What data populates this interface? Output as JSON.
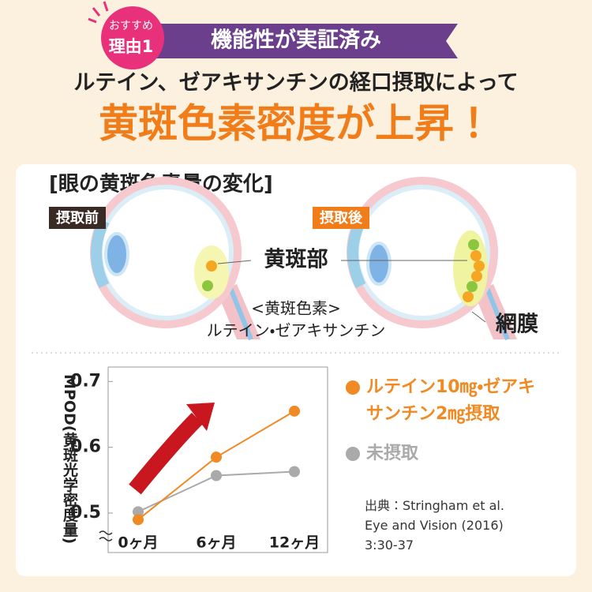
{
  "badge": {
    "top": "おすすめ",
    "bottom": "理由1"
  },
  "ribbon": "機能性が実証済み",
  "subtitle": "ルテイン、ゼアキサンチンの経口摂取によって",
  "headline": "黄斑色素密度が上昇！",
  "card_title": "[眼の黄斑色素量の変化]",
  "diagram": {
    "before": "摂取前",
    "after": "摂取後",
    "macula": "黄斑部",
    "pigment": "<黄斑色素>",
    "pigment_names": "ルテイン・ゼアキサンチン",
    "retina": "網膜"
  },
  "chart_data": {
    "type": "line",
    "y_label": "MPOD(黄斑光学密度量)",
    "categories": [
      "0ヶ月",
      "6ヶ月",
      "12ヶ月"
    ],
    "series": [
      {
        "name": "ルテイン10㎎・ゼアキサンチン2㎎摂取",
        "color": "#f08a24",
        "values": [
          0.49,
          0.585,
          0.655
        ]
      },
      {
        "name": "未摂取",
        "color": "#aaaaaa",
        "values": [
          0.502,
          0.557,
          0.563
        ]
      }
    ],
    "ylim": [
      0.44,
      0.722
    ],
    "yticks": [
      0.5,
      0.6,
      0.7
    ],
    "source": [
      "出典：Stringham et al.",
      "Eye and Vision (2016)",
      "3:30-37"
    ]
  }
}
